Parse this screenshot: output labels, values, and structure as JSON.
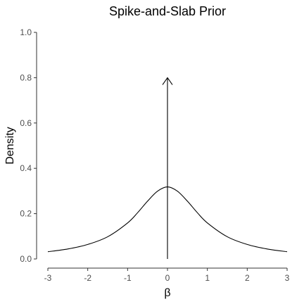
{
  "chart_data": {
    "type": "line",
    "title": "Spike-and-Slab Prior",
    "xlabel": "β",
    "ylabel": "Density",
    "xlim": [
      -3,
      3
    ],
    "ylim": [
      0,
      1
    ],
    "x_ticks": [
      -3,
      -2,
      -1,
      0,
      1,
      2,
      3
    ],
    "x_tick_labels": [
      "-3",
      "-2",
      "-1",
      "0",
      "1",
      "2",
      "3"
    ],
    "y_ticks": [
      0,
      0.2,
      0.4,
      0.6,
      0.8,
      1
    ],
    "y_tick_labels": [
      "0.0",
      "0.2",
      "0.4",
      "0.6",
      "0.8",
      "1.0"
    ],
    "grid": false,
    "series": [
      {
        "kind": "curve",
        "x": [
          -3,
          -2.5,
          -2,
          -1.5,
          -1,
          -0.75,
          -0.5,
          -0.25,
          0,
          0.25,
          0.5,
          0.75,
          1,
          1.5,
          2,
          2.5,
          3
        ],
        "y": [
          0.032,
          0.044,
          0.064,
          0.098,
          0.159,
          0.204,
          0.255,
          0.299,
          0.318,
          0.299,
          0.255,
          0.204,
          0.159,
          0.098,
          0.064,
          0.044,
          0.032
        ]
      },
      {
        "kind": "spike",
        "x": 0,
        "y_from": 0,
        "y_to": 0.8
      }
    ],
    "colors": {
      "series": "#000000",
      "axis": "#333333",
      "tick_text": "#4d4d4d"
    }
  }
}
